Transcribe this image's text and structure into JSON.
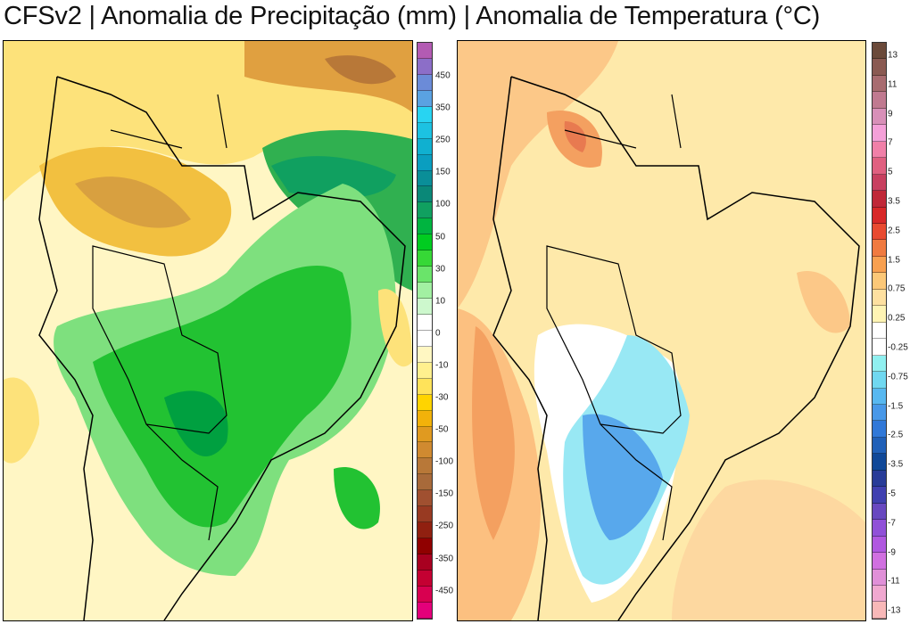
{
  "title": "CFSv2 | Anomalia de Precipitação (mm) | Anomalia de Temperatura (°C)",
  "precip_colorbar": {
    "labels": [
      "450",
      "350",
      "250",
      "150",
      "100",
      "50",
      "30",
      "10",
      "0",
      "-10",
      "-30",
      "-50",
      "-100",
      "-150",
      "-250",
      "-350",
      "-450"
    ],
    "colors": [
      "#b35bb3",
      "#8c6ec8",
      "#6b8bd8",
      "#5aa2e2",
      "#28d4f2",
      "#1cc2e2",
      "#10b0d0",
      "#0a9ec0",
      "#0a8e98",
      "#0a8878",
      "#10a060",
      "#00b440",
      "#00cc20",
      "#36d836",
      "#6ae46a",
      "#a2f0a2",
      "#cdf8cd",
      "#ffffff",
      "#ffffff",
      "#fff7c2",
      "#fff08e",
      "#ffe35a",
      "#ffd400",
      "#f2b20a",
      "#e09a20",
      "#d08a30",
      "#b87838",
      "#a86a3a",
      "#a05030",
      "#983a22",
      "#902010",
      "#900000",
      "#a80020",
      "#c40032",
      "#d80050",
      "#e4007a"
    ]
  },
  "temp_colorbar": {
    "labels": [
      "13",
      "11",
      "9",
      "7",
      "5",
      "3.5",
      "2.5",
      "1.5",
      "0.75",
      "0.25",
      "-0.25",
      "-0.75",
      "-1.5",
      "-2.5",
      "-3.5",
      "-5",
      "-7",
      "-9",
      "-11",
      "-13"
    ],
    "colors": [
      "#6b4a3a",
      "#8a5a52",
      "#a86c70",
      "#c07a90",
      "#d890b8",
      "#f4a0d8",
      "#f080a8",
      "#e06080",
      "#c84060",
      "#c02838",
      "#d82828",
      "#e84a30",
      "#f07a40",
      "#f8a050",
      "#fcc878",
      "#fee0a0",
      "#fff4b4",
      "#ffffff",
      "#ffffff",
      "#90f0f0",
      "#70d8f0",
      "#58b8f0",
      "#4898e8",
      "#3078d8",
      "#2060b8",
      "#104898",
      "#283c98",
      "#4040b0",
      "#6848c0",
      "#9050d8",
      "#b058e0",
      "#d070e0",
      "#e090d8",
      "#f0a8d0",
      "#f8b8b8"
    ]
  }
}
